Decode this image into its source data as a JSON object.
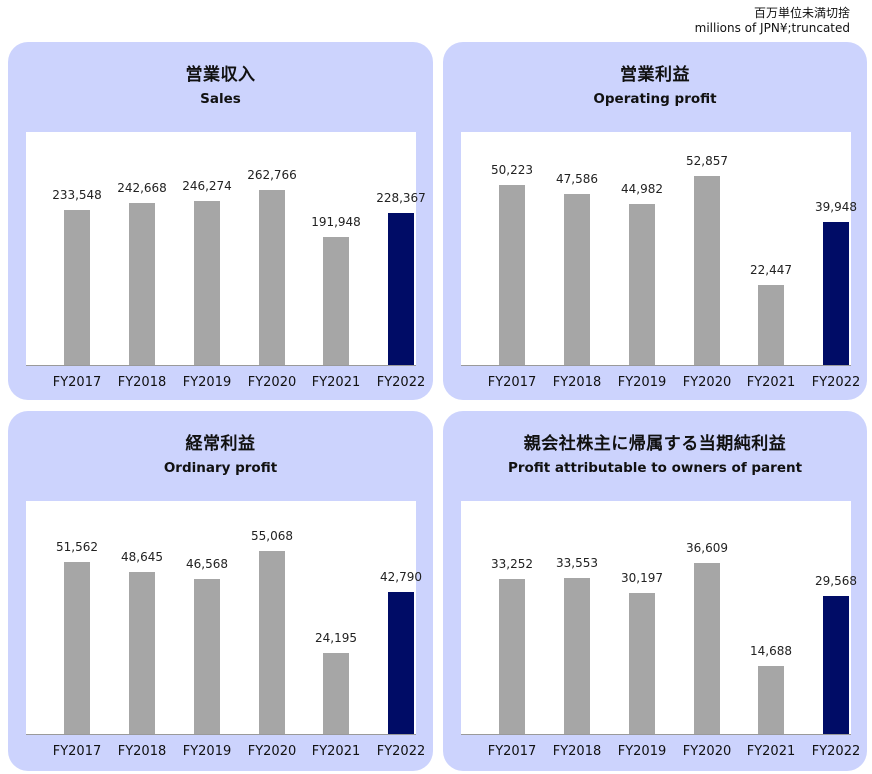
{
  "unit_note": {
    "jp": "百万単位未満切捨",
    "en": "millions of JPN¥;truncated"
  },
  "colors": {
    "panel_bg": "#ccd3fd",
    "bar_default": "#a6a6a6",
    "bar_highlight": "#000c66"
  },
  "chart_data": [
    {
      "type": "bar",
      "title": "営業収入",
      "subtitle": "Sales",
      "categories": [
        "FY2017",
        "FY2018",
        "FY2019",
        "FY2020",
        "FY2021",
        "FY2022"
      ],
      "values": [
        233548,
        242668,
        246274,
        262766,
        191948,
        228367
      ],
      "labels": [
        "233,548",
        "242,668",
        "246,274",
        "262,766",
        "191,948",
        "228,367"
      ],
      "highlight_index": 5,
      "ylim": [
        0,
        350000
      ],
      "xlabel": "",
      "ylabel": "",
      "grid": false,
      "legend": "none"
    },
    {
      "type": "bar",
      "title": "営業利益",
      "subtitle": "Operating profit",
      "categories": [
        "FY2017",
        "FY2018",
        "FY2019",
        "FY2020",
        "FY2021",
        "FY2022"
      ],
      "values": [
        50223,
        47586,
        44982,
        52857,
        22447,
        39948
      ],
      "labels": [
        "50,223",
        "47,586",
        "44,982",
        "52,857",
        "22,447",
        "39,948"
      ],
      "highlight_index": 5,
      "ylim": [
        0,
        65000
      ],
      "xlabel": "",
      "ylabel": "",
      "grid": false,
      "legend": "none"
    },
    {
      "type": "bar",
      "title": "経常利益",
      "subtitle": "Ordinary profit",
      "categories": [
        "FY2017",
        "FY2018",
        "FY2019",
        "FY2020",
        "FY2021",
        "FY2022"
      ],
      "values": [
        51562,
        48645,
        46568,
        55068,
        24195,
        42790
      ],
      "labels": [
        "51,562",
        "48,645",
        "46,568",
        "55,068",
        "24,195",
        "42,790"
      ],
      "highlight_index": 5,
      "ylim": [
        0,
        70000
      ],
      "xlabel": "",
      "ylabel": "",
      "grid": false,
      "legend": "none"
    },
    {
      "type": "bar",
      "title": "親会社株主に帰属する当期純利益",
      "subtitle": "Profit attributable to owners of parent",
      "categories": [
        "FY2017",
        "FY2018",
        "FY2019",
        "FY2020",
        "FY2021",
        "FY2022"
      ],
      "values": [
        33252,
        33553,
        30197,
        36609,
        14688,
        29568
      ],
      "labels": [
        "33,252",
        "33,553",
        "30,197",
        "36,609",
        "14,688",
        "29,568"
      ],
      "highlight_index": 5,
      "ylim": [
        0,
        50000
      ],
      "xlabel": "",
      "ylabel": "",
      "grid": false,
      "legend": "none"
    }
  ]
}
